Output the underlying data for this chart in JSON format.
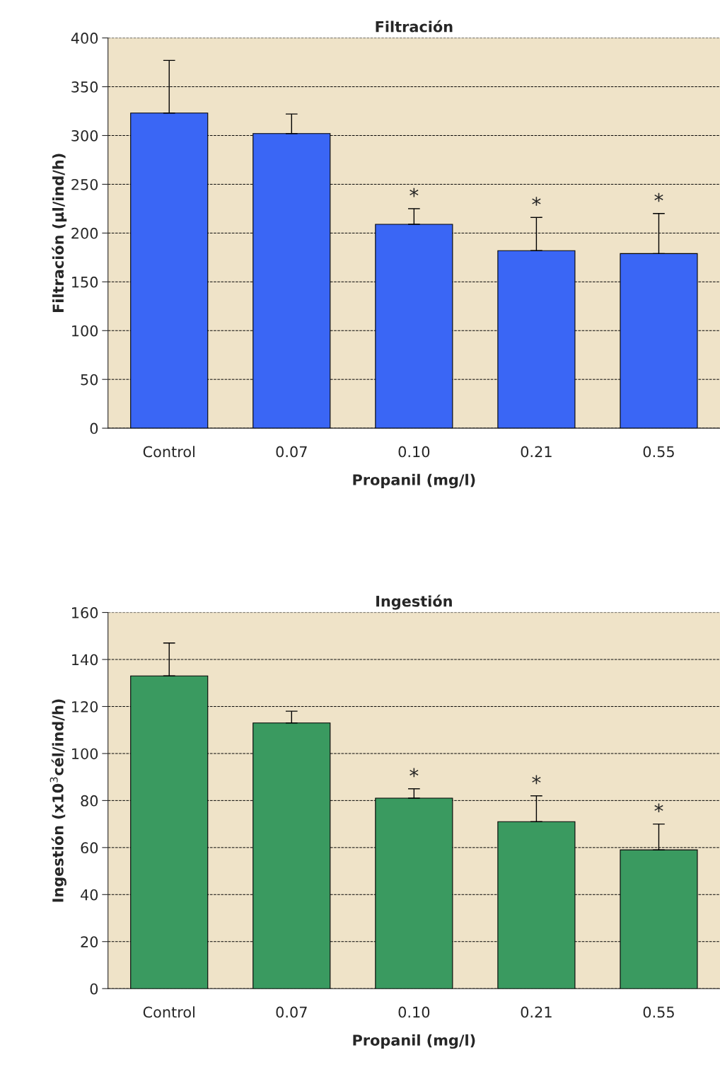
{
  "chart_data": [
    {
      "type": "bar",
      "title": "Filtración",
      "xlabel": "Propanil (mg/l)",
      "ylabel": "Filtración (µl/ind/h)",
      "categories": [
        "Control",
        "0.07",
        "0.10",
        "0.21",
        "0.55"
      ],
      "values": [
        323,
        302,
        209,
        182,
        179
      ],
      "color": "#3a66f5",
      "errors": [
        [
          323,
          377
        ],
        [
          302,
          322
        ],
        [
          209,
          225
        ],
        [
          182,
          216
        ],
        [
          179,
          220
        ]
      ],
      "ylim": [
        0,
        400
      ],
      "yticks": [
        0,
        50,
        100,
        150,
        200,
        250,
        300,
        350,
        400
      ],
      "grid": "y",
      "annotations": [
        {
          "text": "*",
          "x": "0.10",
          "y": 225
        },
        {
          "text": "*",
          "x": "0.21",
          "y": 216
        },
        {
          "text": "*",
          "x": "0.55",
          "y": 220
        }
      ]
    },
    {
      "type": "bar",
      "title": "Ingestión",
      "xlabel": "Propanil (mg/l)",
      "ylabel": "Ingestión (x10$^{3}$cél/ind/h)",
      "categories": [
        "Control",
        "0.07",
        "0.10",
        "0.21",
        "0.55"
      ],
      "values": [
        133,
        113,
        81,
        71,
        59
      ],
      "color": "#3a9a60",
      "errors": [
        [
          133,
          147
        ],
        [
          113,
          118
        ],
        [
          81,
          85
        ],
        [
          71,
          82
        ],
        [
          59,
          70
        ]
      ],
      "ylim": [
        0,
        160
      ],
      "yticks": [
        0,
        20,
        40,
        60,
        80,
        100,
        120,
        140,
        160
      ],
      "grid": "y",
      "annotations": [
        {
          "text": "*",
          "x": "0.10",
          "y": 85
        },
        {
          "text": "*",
          "x": "0.21",
          "y": 82
        },
        {
          "text": "*",
          "x": "0.55",
          "y": 70
        }
      ]
    }
  ]
}
